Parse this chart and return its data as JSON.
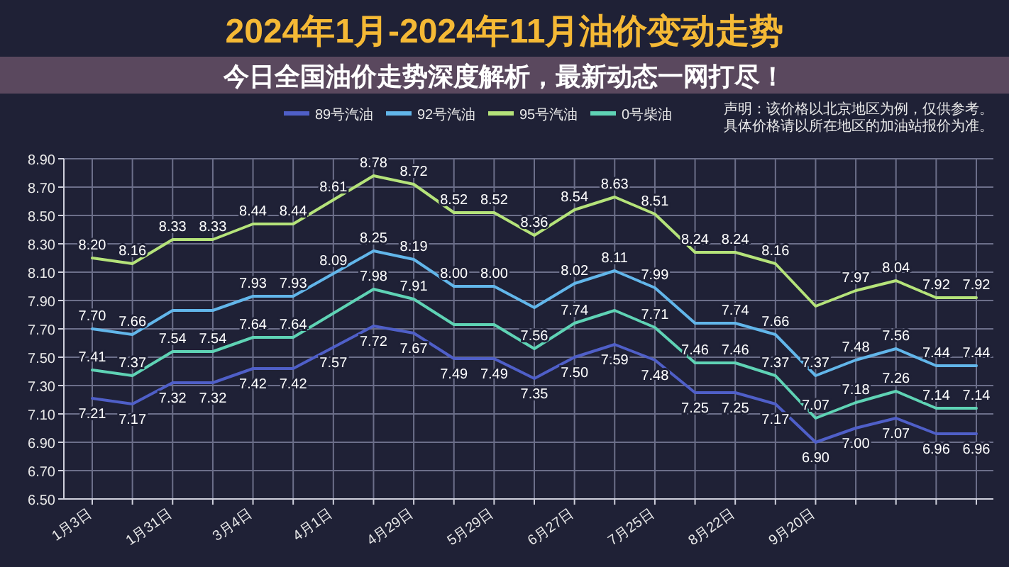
{
  "chart_data": {
    "type": "line",
    "title": "2024年1月-2024年11月油价变动走势",
    "annotations": [
      "声明：该价格以北京地区为例，仅供参考。具体价格请以所在地区的加油站报价为准。",
      "今日全国油价走势深度解析，最新动态一网打尽！"
    ],
    "categories": [
      "1月3日",
      null,
      "1月31日",
      null,
      "3月4日",
      null,
      "4月1日",
      null,
      "4月29日",
      null,
      "5月29日",
      null,
      "6月27日",
      null,
      "7月25日",
      null,
      "8月22日",
      null,
      "9月20日",
      null,
      null,
      null,
      null
    ],
    "series": [
      {
        "name": "89号汽油",
        "color": "#4f5fc8",
        "values": [
          7.21,
          7.17,
          7.32,
          7.32,
          7.42,
          7.42,
          7.57,
          7.72,
          7.67,
          7.49,
          7.49,
          7.35,
          7.5,
          7.59,
          7.48,
          7.25,
          7.25,
          7.17,
          6.9,
          7.0,
          7.07,
          6.96,
          6.96
        ],
        "value_labels": [
          "7.21",
          "7.17",
          "7.32",
          "7.32",
          "7.42",
          "7.42",
          "7.57",
          "7.72",
          "7.67",
          "7.49",
          "7.49",
          "7.35",
          "7.50",
          "7.59",
          "7.48",
          "7.25",
          "7.25",
          "7.17",
          "6.90",
          "7.00",
          "7.07",
          "6.96",
          "6.96"
        ]
      },
      {
        "name": "92号汽油",
        "color": "#62b6ea",
        "values": [
          7.7,
          7.66,
          7.83,
          7.83,
          7.93,
          7.93,
          8.09,
          8.25,
          8.19,
          8.0,
          8.0,
          7.85,
          8.02,
          8.11,
          7.99,
          7.74,
          7.74,
          7.66,
          7.37,
          7.48,
          7.56,
          7.44,
          7.44
        ],
        "value_labels": [
          "7.70",
          "7.66",
          null,
          null,
          "7.93",
          "7.93",
          "8.09",
          "8.25",
          "8.19",
          "8.00",
          "8.00",
          null,
          "8.02",
          "8.11",
          "7.99",
          null,
          "7.74",
          "7.66",
          "7.37",
          "7.48",
          "7.56",
          "7.44",
          "7.44"
        ]
      },
      {
        "name": "95号汽油",
        "color": "#b5e37a",
        "values": [
          8.2,
          8.16,
          8.33,
          8.33,
          8.44,
          8.44,
          8.61,
          8.78,
          8.72,
          8.52,
          8.52,
          8.36,
          8.54,
          8.63,
          8.51,
          8.24,
          8.24,
          8.16,
          7.86,
          7.97,
          8.04,
          7.92,
          7.92
        ],
        "value_labels": [
          "8.20",
          "8.16",
          "8.33",
          "8.33",
          "8.44",
          "8.44",
          "8.61",
          "8.78",
          "8.72",
          "8.52",
          "8.52",
          "8.36",
          "8.54",
          "8.63",
          "8.51",
          "8.24",
          "8.24",
          "8.16",
          null,
          "7.97",
          "8.04",
          "7.92",
          "7.92"
        ]
      },
      {
        "name": "0号柴油",
        "color": "#5fd3b5",
        "values": [
          7.41,
          7.37,
          7.54,
          7.54,
          7.64,
          7.64,
          7.81,
          7.98,
          7.91,
          7.73,
          7.73,
          7.56,
          7.74,
          7.83,
          7.71,
          7.46,
          7.46,
          7.37,
          7.07,
          7.18,
          7.26,
          7.14,
          7.14
        ],
        "value_labels": [
          "7.41",
          "7.37",
          "7.54",
          "7.54",
          "7.64",
          "7.64",
          null,
          "7.98",
          "7.91",
          null,
          null,
          "7.56",
          "7.74",
          null,
          "7.71",
          "7.46",
          "7.46",
          "7.37",
          "7.07",
          "7.18",
          "7.26",
          "7.14",
          "7.14"
        ]
      }
    ],
    "ylim": [
      6.5,
      8.9
    ],
    "yticks": [
      {
        "value": 6.5,
        "label": "6.50"
      },
      {
        "value": 6.7,
        "label": "6.70"
      },
      {
        "value": 6.9,
        "label": "6.90"
      },
      {
        "value": 7.1,
        "label": "7.10"
      },
      {
        "value": 7.3,
        "label": "7.30"
      },
      {
        "value": 7.5,
        "label": "7.50"
      },
      {
        "value": 7.7,
        "label": "7.70"
      },
      {
        "value": 7.9,
        "label": "7.90"
      },
      {
        "value": 8.1,
        "label": "8.10"
      },
      {
        "value": 8.3,
        "label": "8.30"
      },
      {
        "value": 8.5,
        "label": "8.50"
      },
      {
        "value": 8.7,
        "label": "8.70"
      },
      {
        "value": 8.9,
        "label": "8.90"
      }
    ],
    "grid": true,
    "legend": "top"
  }
}
